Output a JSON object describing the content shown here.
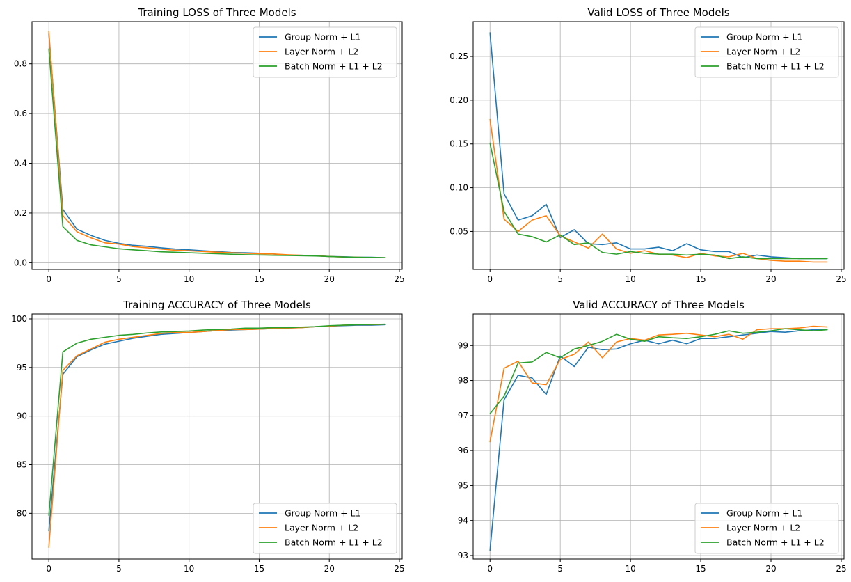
{
  "figure": {
    "colors": [
      "#1f77b4",
      "#ff7f0e",
      "#2ca02c"
    ]
  },
  "chart_data": [
    {
      "type": "line",
      "title": "Training LOSS of Three Models",
      "xlabel": "",
      "ylabel": "",
      "xlim": [
        -1.2,
        25.2
      ],
      "ylim": [
        -0.027,
        0.97
      ],
      "xticks": [
        0,
        5,
        10,
        15,
        20,
        25
      ],
      "xtick_labels": [
        "0",
        "5",
        "10",
        "15",
        "20",
        "25"
      ],
      "yticks": [
        0.0,
        0.2,
        0.4,
        0.6,
        0.8
      ],
      "ytick_labels": [
        "0.0",
        "0.2",
        "0.4",
        "0.6",
        "0.8"
      ],
      "grid": true,
      "legend": "top-right",
      "x": [
        0,
        1,
        2,
        3,
        4,
        5,
        6,
        7,
        8,
        9,
        10,
        11,
        12,
        13,
        14,
        15,
        16,
        17,
        18,
        19,
        20,
        21,
        22,
        23,
        24
      ],
      "series": [
        {
          "name": "Group Norm + L1",
          "color": "#1f77b4",
          "values": [
            0.92,
            0.215,
            0.135,
            0.11,
            0.09,
            0.078,
            0.07,
            0.066,
            0.06,
            0.055,
            0.052,
            0.048,
            0.045,
            0.041,
            0.04,
            0.038,
            0.035,
            0.03,
            0.03,
            0.028,
            0.025,
            0.024,
            0.022,
            0.022,
            0.02
          ]
        },
        {
          "name": "Layer Norm + L2",
          "color": "#ff7f0e",
          "values": [
            0.93,
            0.19,
            0.125,
            0.1,
            0.08,
            0.075,
            0.065,
            0.06,
            0.055,
            0.05,
            0.048,
            0.045,
            0.042,
            0.04,
            0.038,
            0.036,
            0.035,
            0.032,
            0.03,
            0.028,
            0.025,
            0.023,
            0.022,
            0.02,
            0.02
          ]
        },
        {
          "name": "Batch Norm + L1 + L2",
          "color": "#2ca02c",
          "values": [
            0.86,
            0.145,
            0.09,
            0.072,
            0.064,
            0.056,
            0.052,
            0.048,
            0.044,
            0.042,
            0.04,
            0.038,
            0.036,
            0.034,
            0.032,
            0.031,
            0.03,
            0.029,
            0.028,
            0.027,
            0.025,
            0.023,
            0.022,
            0.021,
            0.02
          ]
        }
      ]
    },
    {
      "type": "line",
      "title": "Valid LOSS of Three Models",
      "xlabel": "",
      "ylabel": "",
      "xlim": [
        -1.2,
        25.2
      ],
      "ylim": [
        0.0066,
        0.2898
      ],
      "xticks": [
        0,
        5,
        10,
        15,
        20,
        25
      ],
      "xtick_labels": [
        "0",
        "5",
        "10",
        "15",
        "20",
        "25"
      ],
      "yticks": [
        0.05,
        0.1,
        0.15,
        0.2,
        0.25
      ],
      "ytick_labels": [
        "0.05",
        "0.10",
        "0.15",
        "0.20",
        "0.25"
      ],
      "grid": true,
      "legend": "top-right",
      "x": [
        0,
        1,
        2,
        3,
        4,
        5,
        6,
        7,
        8,
        9,
        10,
        11,
        12,
        13,
        14,
        15,
        16,
        17,
        18,
        19,
        20,
        21,
        22,
        23,
        24
      ],
      "series": [
        {
          "name": "Group Norm + L1",
          "color": "#1f77b4",
          "values": [
            0.277,
            0.093,
            0.063,
            0.068,
            0.081,
            0.043,
            0.052,
            0.036,
            0.035,
            0.037,
            0.03,
            0.03,
            0.032,
            0.028,
            0.036,
            0.029,
            0.027,
            0.027,
            0.02,
            0.023,
            0.021,
            0.02,
            0.019,
            0.019,
            0.019
          ]
        },
        {
          "name": "Layer Norm + L2",
          "color": "#ff7f0e",
          "values": [
            0.178,
            0.064,
            0.05,
            0.063,
            0.068,
            0.045,
            0.038,
            0.031,
            0.047,
            0.03,
            0.025,
            0.028,
            0.024,
            0.023,
            0.02,
            0.025,
            0.022,
            0.021,
            0.025,
            0.019,
            0.017,
            0.016,
            0.016,
            0.015,
            0.015
          ]
        },
        {
          "name": "Batch Norm + L1 + L2",
          "color": "#2ca02c",
          "values": [
            0.151,
            0.073,
            0.047,
            0.044,
            0.038,
            0.046,
            0.035,
            0.037,
            0.026,
            0.024,
            0.027,
            0.025,
            0.024,
            0.024,
            0.023,
            0.024,
            0.023,
            0.019,
            0.021,
            0.019,
            0.019,
            0.019,
            0.019,
            0.019,
            0.019
          ]
        }
      ]
    },
    {
      "type": "line",
      "title": "Training ACCURACY of Three Models",
      "xlabel": "",
      "ylabel": "",
      "xlim": [
        -1.2,
        25.2
      ],
      "ylim": [
        75.3,
        100.5
      ],
      "xticks": [
        0,
        5,
        10,
        15,
        20,
        25
      ],
      "xtick_labels": [
        "0",
        "5",
        "10",
        "15",
        "20",
        "25"
      ],
      "yticks": [
        80,
        85,
        90,
        95,
        100
      ],
      "ytick_labels": [
        "80",
        "85",
        "90",
        "95",
        "100"
      ],
      "grid": true,
      "legend": "bottom-right",
      "x": [
        0,
        1,
        2,
        3,
        4,
        5,
        6,
        7,
        8,
        9,
        10,
        11,
        12,
        13,
        14,
        15,
        16,
        17,
        18,
        19,
        20,
        21,
        22,
        23,
        24
      ],
      "series": [
        {
          "name": "Group Norm + L1",
          "color": "#1f77b4",
          "values": [
            78.2,
            94.3,
            96.1,
            96.8,
            97.4,
            97.7,
            98.0,
            98.2,
            98.4,
            98.5,
            98.6,
            98.7,
            98.8,
            98.85,
            98.9,
            98.95,
            99.0,
            99.05,
            99.1,
            99.2,
            99.25,
            99.3,
            99.35,
            99.35,
            99.4
          ]
        },
        {
          "name": "Layer Norm + L2",
          "color": "#ff7f0e",
          "values": [
            76.5,
            94.7,
            96.2,
            96.9,
            97.6,
            97.9,
            98.1,
            98.3,
            98.5,
            98.6,
            98.6,
            98.7,
            98.8,
            98.9,
            98.9,
            98.95,
            99.0,
            99.05,
            99.1,
            99.2,
            99.25,
            99.35,
            99.4,
            99.4,
            99.45
          ]
        },
        {
          "name": "Batch Norm + L1 + L2",
          "color": "#2ca02c",
          "values": [
            79.8,
            96.6,
            97.5,
            97.9,
            98.1,
            98.3,
            98.4,
            98.55,
            98.65,
            98.7,
            98.75,
            98.85,
            98.9,
            98.95,
            99.05,
            99.05,
            99.1,
            99.1,
            99.15,
            99.2,
            99.3,
            99.35,
            99.4,
            99.42,
            99.45
          ]
        }
      ]
    },
    {
      "type": "line",
      "title": "Valid ACCURACY of Three Models",
      "xlabel": "",
      "ylabel": "",
      "xlim": [
        -1.2,
        25.2
      ],
      "ylim": [
        92.9,
        99.9
      ],
      "xticks": [
        0,
        5,
        10,
        15,
        20,
        25
      ],
      "xtick_labels": [
        "0",
        "5",
        "10",
        "15",
        "20",
        "25"
      ],
      "yticks": [
        93,
        94,
        95,
        96,
        97,
        98,
        99
      ],
      "ytick_labels": [
        "93",
        "94",
        "95",
        "96",
        "97",
        "98",
        "99"
      ],
      "grid": true,
      "legend": "bottom-right",
      "x": [
        0,
        1,
        2,
        3,
        4,
        5,
        6,
        7,
        8,
        9,
        10,
        11,
        12,
        13,
        14,
        15,
        16,
        17,
        18,
        19,
        20,
        21,
        22,
        23,
        24
      ],
      "series": [
        {
          "name": "Group Norm + L1",
          "color": "#1f77b4",
          "values": [
            93.15,
            97.45,
            98.15,
            98.07,
            97.6,
            98.7,
            98.4,
            98.95,
            98.88,
            98.9,
            99.05,
            99.15,
            99.05,
            99.15,
            99.05,
            99.2,
            99.2,
            99.25,
            99.3,
            99.35,
            99.4,
            99.38,
            99.42,
            99.45,
            99.45
          ]
        },
        {
          "name": "Layer Norm + L2",
          "color": "#ff7f0e",
          "values": [
            96.25,
            98.35,
            98.55,
            97.93,
            97.88,
            98.6,
            98.75,
            99.1,
            98.65,
            99.1,
            99.2,
            99.15,
            99.3,
            99.32,
            99.35,
            99.3,
            99.25,
            99.32,
            99.18,
            99.45,
            99.48,
            99.48,
            99.5,
            99.55,
            99.53
          ]
        },
        {
          "name": "Batch Norm + L1 + L2",
          "color": "#2ca02c",
          "values": [
            97.05,
            97.55,
            98.5,
            98.53,
            98.8,
            98.65,
            98.9,
            99.0,
            99.12,
            99.32,
            99.18,
            99.12,
            99.25,
            99.22,
            99.2,
            99.25,
            99.32,
            99.42,
            99.35,
            99.38,
            99.42,
            99.48,
            99.45,
            99.42,
            99.45
          ]
        }
      ]
    }
  ]
}
